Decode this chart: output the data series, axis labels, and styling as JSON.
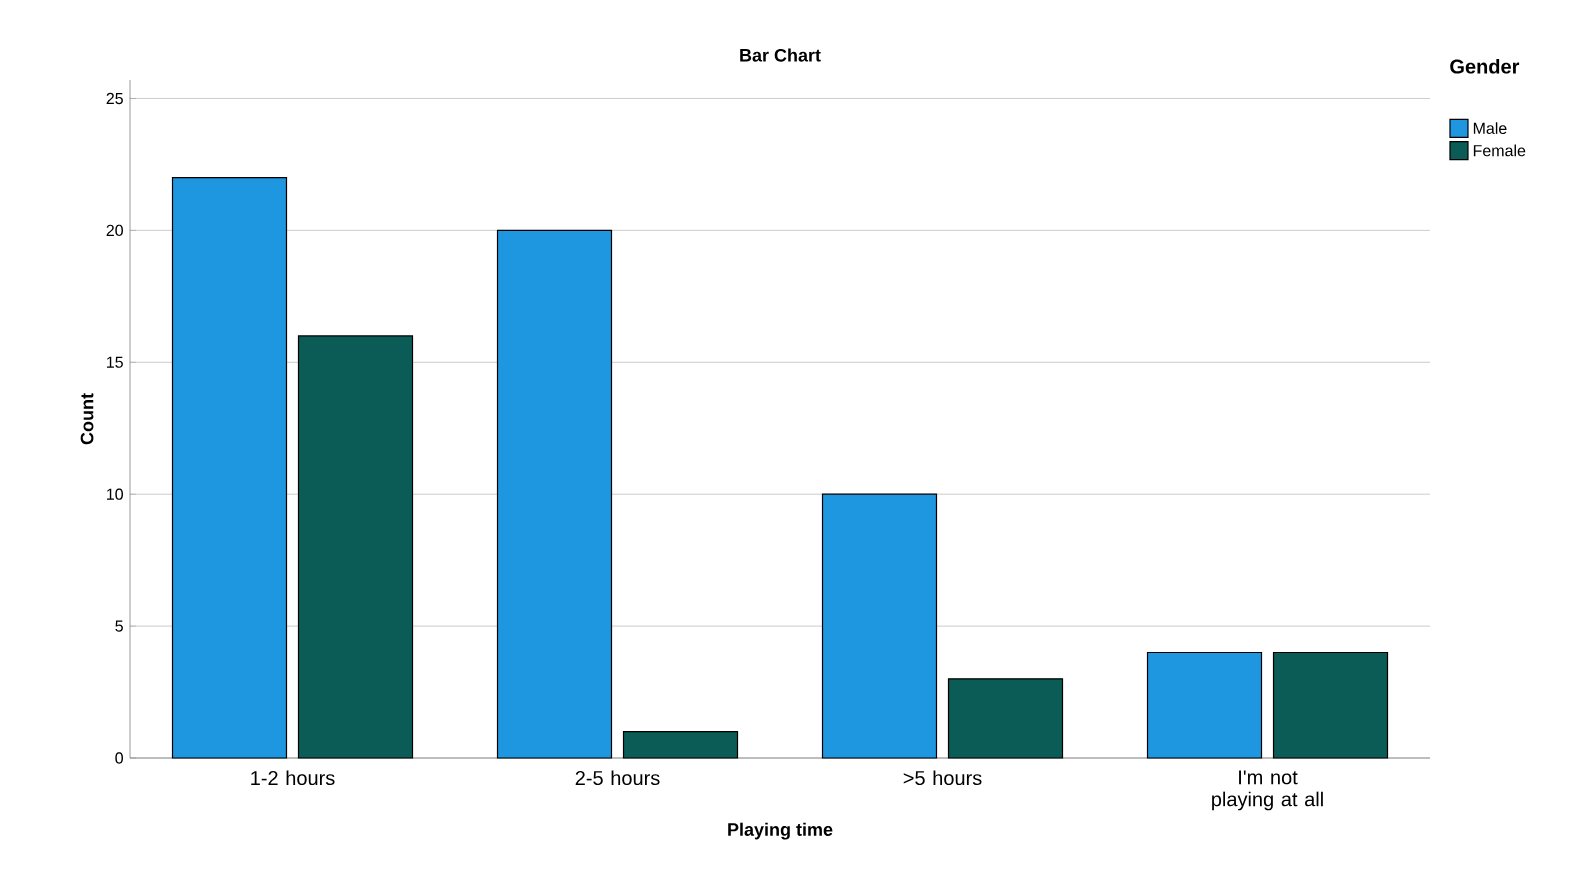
{
  "chart_data": {
    "type": "bar",
    "title": "Bar Chart",
    "xlabel": "Playing time",
    "ylabel": "Count",
    "legend_title": "Gender",
    "categories": [
      "1-2 hours",
      "2-5 hours",
      ">5 hours",
      "I'm not playing at all"
    ],
    "series": [
      {
        "name": "Male",
        "color": "#1e96e0",
        "values": [
          22,
          20,
          10,
          4
        ]
      },
      {
        "name": "Female",
        "color": "#0b5c57",
        "values": [
          16,
          1,
          3,
          4
        ]
      }
    ],
    "ylim": [
      0,
      25.7
    ],
    "yticks": [
      0,
      5,
      10,
      15,
      20,
      25
    ],
    "grid": "y",
    "legend": "top right"
  }
}
